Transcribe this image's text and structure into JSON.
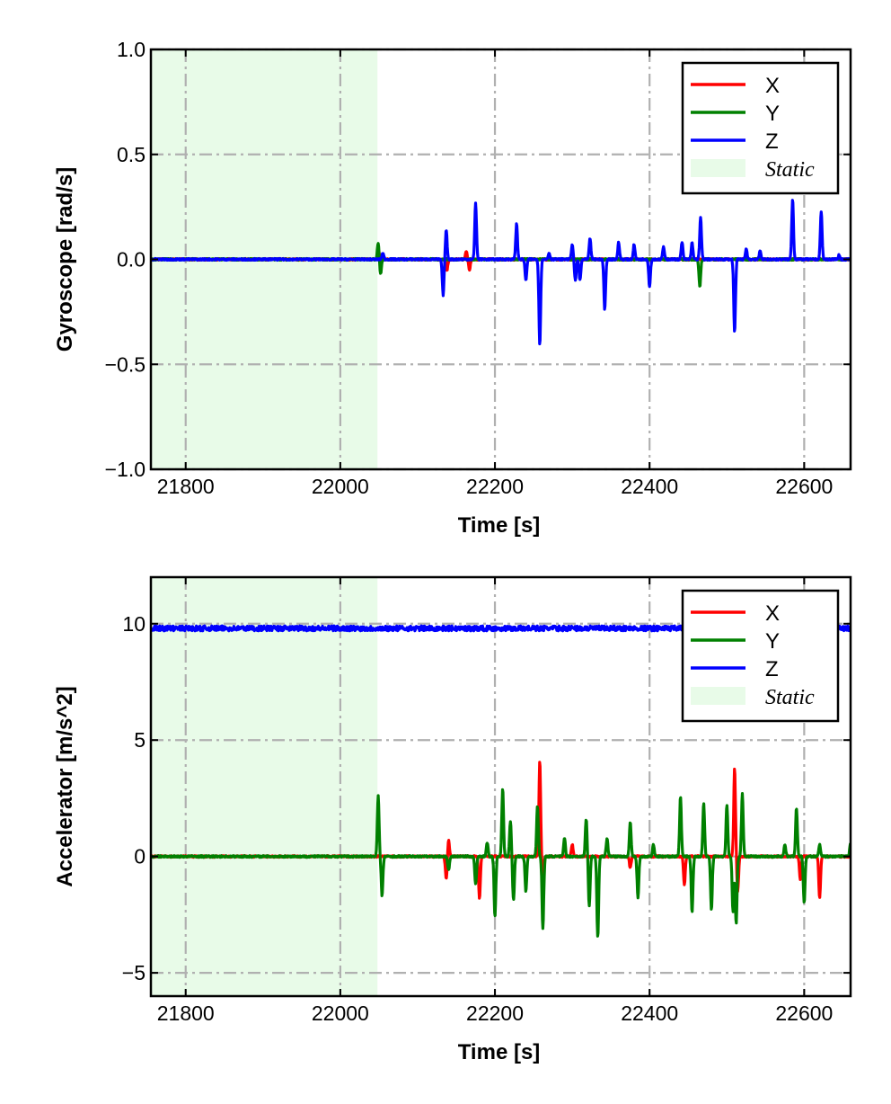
{
  "chart_data": [
    {
      "type": "line",
      "title": "",
      "xlabel": "Time [s]",
      "ylabel": "Gyroscope [rad/s]",
      "xlim": [
        21755,
        22660
      ],
      "ylim": [
        -1.0,
        1.0
      ],
      "xticks": [
        21800,
        22000,
        22200,
        22400,
        22600
      ],
      "xtick_labels": [
        "21800",
        "22000",
        "22200",
        "22400",
        "22600"
      ],
      "yticks": [
        1.0,
        0.5,
        0.0,
        -0.5,
        -1.0
      ],
      "ytick_labels": [
        "1.0",
        "0.5",
        "0.0",
        "−0.5",
        "−1.0"
      ],
      "grid": true,
      "legend_position": "top-right",
      "static_region": [
        21755,
        22048
      ],
      "static_label": "Static",
      "series": [
        {
          "name": "X",
          "color": "#ff0000",
          "baseline": 0.0,
          "spikes": [
            [
              22050,
              0.04
            ],
            [
              22052,
              -0.03
            ],
            [
              22138,
              -0.05
            ],
            [
              22163,
              0.04
            ],
            [
              22167,
              -0.05
            ]
          ]
        },
        {
          "name": "Y",
          "color": "#008000",
          "baseline": 0.0,
          "spikes": [
            [
              22049,
              0.08
            ],
            [
              22052,
              -0.07
            ],
            [
              22465,
              -0.13
            ]
          ]
        },
        {
          "name": "Z",
          "color": "#0000ff",
          "baseline": 0.0,
          "spikes": [
            [
              22055,
              0.03
            ],
            [
              22133,
              -0.17
            ],
            [
              22137,
              0.14
            ],
            [
              22175,
              0.27
            ],
            [
              22228,
              0.17
            ],
            [
              22240,
              -0.1
            ],
            [
              22258,
              -0.41
            ],
            [
              22270,
              0.03
            ],
            [
              22300,
              0.07
            ],
            [
              22304,
              -0.1
            ],
            [
              22310,
              -0.1
            ],
            [
              22323,
              0.1
            ],
            [
              22342,
              -0.24
            ],
            [
              22360,
              0.08
            ],
            [
              22380,
              0.07
            ],
            [
              22400,
              -0.13
            ],
            [
              22418,
              0.06
            ],
            [
              22442,
              0.08
            ],
            [
              22455,
              0.08
            ],
            [
              22466,
              0.2
            ],
            [
              22510,
              -0.35
            ],
            [
              22525,
              0.05
            ],
            [
              22543,
              0.04
            ],
            [
              22585,
              0.29
            ],
            [
              22622,
              0.23
            ],
            [
              22645,
              0.02
            ]
          ]
        }
      ]
    },
    {
      "type": "line",
      "title": "",
      "xlabel": "Time [s]",
      "ylabel": "Accelerator [m/s^2]",
      "xlim": [
        21755,
        22660
      ],
      "ylim": [
        -6,
        12
      ],
      "xticks": [
        21800,
        22000,
        22200,
        22400,
        22600
      ],
      "xtick_labels": [
        "21800",
        "22000",
        "22200",
        "22400",
        "22600"
      ],
      "yticks": [
        10,
        5,
        0,
        -5
      ],
      "ytick_labels": [
        "10",
        "5",
        "0",
        "−5"
      ],
      "grid": true,
      "legend_position": "top-right",
      "static_region": [
        21755,
        22048
      ],
      "static_label": "Static",
      "series": [
        {
          "name": "X",
          "color": "#ff0000",
          "baseline": 0.0,
          "spikes": [
            [
              22137,
              -1.0
            ],
            [
              22140,
              0.7
            ],
            [
              22180,
              -1.8
            ],
            [
              22258,
              4.1
            ],
            [
              22262,
              -1.0
            ],
            [
              22300,
              0.5
            ],
            [
              22375,
              -0.5
            ],
            [
              22445,
              -1.2
            ],
            [
              22510,
              3.8
            ],
            [
              22514,
              -1.5
            ],
            [
              22595,
              -1.0
            ],
            [
              22620,
              -1.8
            ]
          ]
        },
        {
          "name": "Y",
          "color": "#008000",
          "baseline": 0.0,
          "spikes": [
            [
              22049,
              2.6
            ],
            [
              22054,
              -1.7
            ],
            [
              22140,
              -0.6
            ],
            [
              22175,
              -1.2
            ],
            [
              22190,
              0.6
            ],
            [
              22200,
              -2.6
            ],
            [
              22210,
              2.9
            ],
            [
              22220,
              1.5
            ],
            [
              22224,
              -1.9
            ],
            [
              22240,
              -1.5
            ],
            [
              22255,
              2.2
            ],
            [
              22262,
              -3.1
            ],
            [
              22290,
              0.8
            ],
            [
              22318,
              1.6
            ],
            [
              22322,
              -2.1
            ],
            [
              22333,
              -3.5
            ],
            [
              22345,
              0.8
            ],
            [
              22375,
              1.5
            ],
            [
              22385,
              -1.8
            ],
            [
              22405,
              0.5
            ],
            [
              22440,
              2.6
            ],
            [
              22455,
              -2.4
            ],
            [
              22470,
              2.3
            ],
            [
              22480,
              -2.3
            ],
            [
              22500,
              2.2
            ],
            [
              22508,
              -2.4
            ],
            [
              22512,
              -2.9
            ],
            [
              22520,
              2.7
            ],
            [
              22575,
              0.5
            ],
            [
              22590,
              2.1
            ],
            [
              22600,
              -2.0
            ],
            [
              22620,
              0.5
            ],
            [
              22660,
              0.6
            ]
          ]
        },
        {
          "name": "Z",
          "color": "#0000ff",
          "baseline": 9.8,
          "spikes": []
        }
      ]
    }
  ]
}
